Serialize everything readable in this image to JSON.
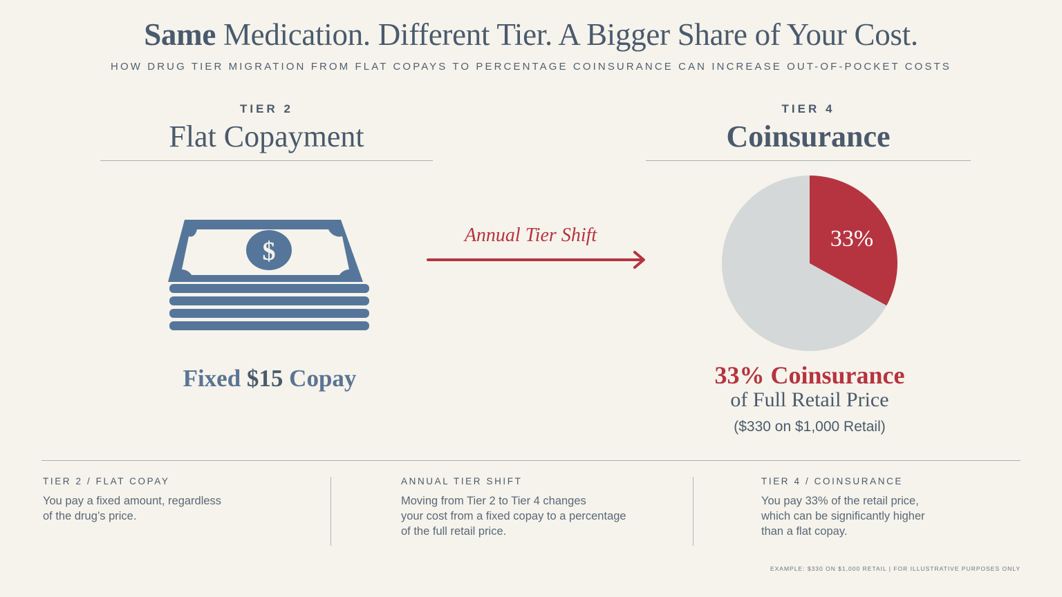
{
  "header": {
    "title_bold": "Same",
    "title_rest": " Medication. Different Tier. A Bigger Share of Your Cost.",
    "subtitle": "HOW DRUG TIER MIGRATION FROM FLAT COPAYS TO PERCENTAGE COINSURANCE CAN INCREASE OUT-OF-POCKET COSTS"
  },
  "left_panel": {
    "kicker": "TIER 2",
    "name": "Flat Copayment",
    "icon": "money-stack-icon",
    "caption_pre": "Fixed ",
    "caption_amount": "$15",
    "caption_post": " Copay"
  },
  "middle": {
    "label": "Annual Tier Shift",
    "icon": "right-arrow-icon"
  },
  "right_panel": {
    "kicker": "TIER 4",
    "name": "Coinsurance",
    "pie_label": "33%",
    "pie_share": 0.33,
    "headline": "33% Coinsurance",
    "subline": "of Full Retail Price",
    "example": "($330 on $1,000 Retail)"
  },
  "notes": [
    {
      "title": "TIER 2 / FLAT COPAY",
      "body": "You pay a fixed amount, regardless\nof the drug’s price."
    },
    {
      "title": "ANNUAL TIER SHIFT",
      "body": "Moving from Tier 2 to Tier 4 changes\nyour cost from a fixed copay to a percentage\nof the full retail price."
    },
    {
      "title": "TIER 4 / COINSURANCE",
      "body": "You pay 33% of the retail price,\nwhich can be significantly higher\nthan a flat copay."
    }
  ],
  "footnote": "EXAMPLE: $330 ON $1,000 RETAIL  |  FOR ILLUSTRATIVE PURPOSES ONLY",
  "colors": {
    "background": "#f5f3eb",
    "slate": "#4a5a6c",
    "money_blue": "#55769a",
    "accent_red": "#b53440",
    "pie_gray": "#d5d8d8"
  }
}
